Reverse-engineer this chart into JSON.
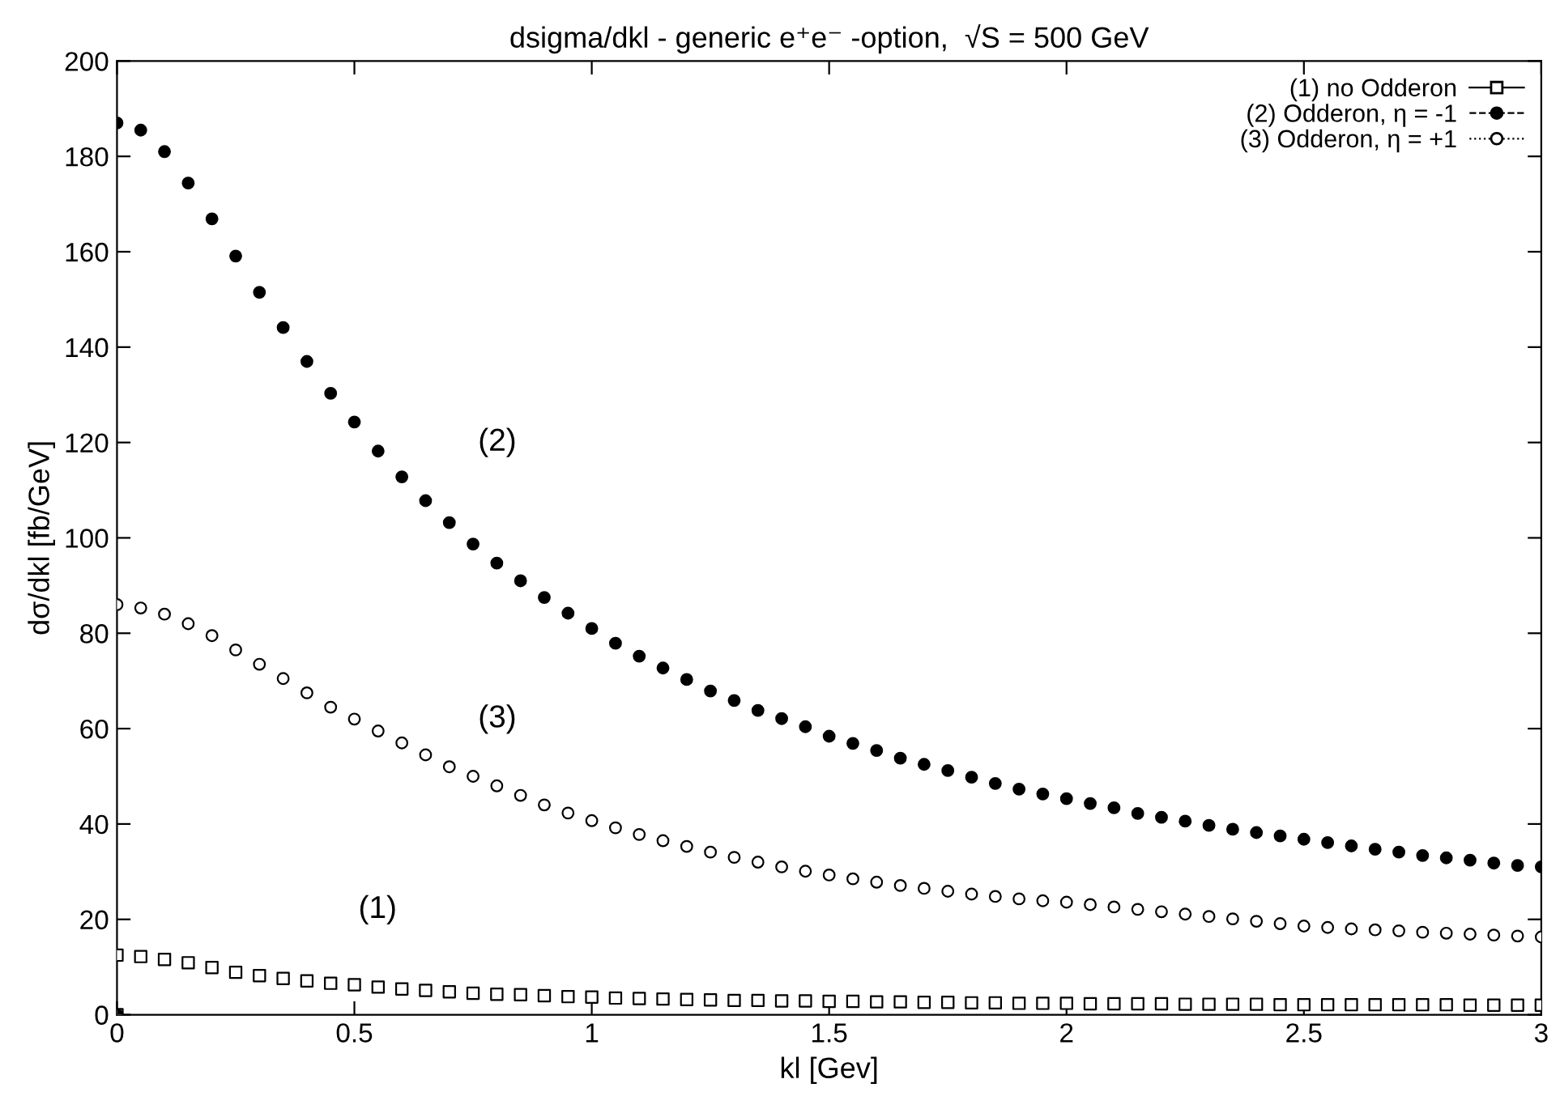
{
  "chart_data": {
    "type": "scatter",
    "title": "dsigma/dkl - generic e⁺e⁻ -option,  √S = 500 GeV",
    "xlabel": "kl [Gev]",
    "ylabel": "dσ/dkl [fb/GeV]",
    "x": [
      0,
      0.05,
      0.1,
      0.15,
      0.2,
      0.25,
      0.3,
      0.35,
      0.4,
      0.45,
      0.5,
      0.55,
      0.6,
      0.65,
      0.7,
      0.75,
      0.8,
      0.85,
      0.9,
      0.95,
      1,
      1.05,
      1.1,
      1.15,
      1.2,
      1.25,
      1.3,
      1.35,
      1.4,
      1.45,
      1.5,
      1.55,
      1.6,
      1.65,
      1.7,
      1.75,
      1.8,
      1.85,
      1.9,
      1.95,
      2,
      2.05,
      2.1,
      2.15,
      2.2,
      2.25,
      2.3,
      2.35,
      2.4,
      2.45,
      2.5,
      2.55,
      2.6,
      2.65,
      2.7,
      2.75,
      2.8,
      2.85,
      2.9,
      2.95,
      3
    ],
    "series": [
      {
        "name": "(1) no Odderon",
        "color": "#ffffff",
        "marker": "square",
        "line_style": "solid",
        "x": [
          0,
          0,
          0.05,
          0.1,
          0.15,
          0.2,
          0.25,
          0.3,
          0.35,
          0.4,
          0.45,
          0.5,
          0.55,
          0.6,
          0.65,
          0.7,
          0.75,
          0.8,
          0.85,
          0.9,
          0.95,
          1,
          1.05,
          1.1,
          1.15,
          1.2,
          1.25,
          1.3,
          1.35,
          1.4,
          1.45,
          1.5,
          1.55,
          1.6,
          1.65,
          1.7,
          1.75,
          1.8,
          1.85,
          1.9,
          1.95,
          2,
          2.05,
          2.1,
          2.15,
          2.2,
          2.25,
          2.3,
          2.35,
          2.4,
          2.45,
          2.5,
          2.55,
          2.6,
          2.65,
          2.7,
          2.75,
          2.8,
          2.85,
          2.9,
          2.95,
          3
        ],
        "values": [
          0,
          12.5,
          12.2,
          11.6,
          10.9,
          9.9,
          8.9,
          8.2,
          7.6,
          7.1,
          6.6,
          6.3,
          5.8,
          5.4,
          5.1,
          4.8,
          4.5,
          4.3,
          4.2,
          4.0,
          3.8,
          3.7,
          3.5,
          3.4,
          3.3,
          3.2,
          3.1,
          3.0,
          3.0,
          2.9,
          2.9,
          2.8,
          2.8,
          2.7,
          2.7,
          2.6,
          2.6,
          2.5,
          2.5,
          2.4,
          2.4,
          2.4,
          2.3,
          2.3,
          2.3,
          2.3,
          2.2,
          2.2,
          2.2,
          2.2,
          2.1,
          2.1,
          2.1,
          2.1,
          2.1,
          2.1,
          2.1,
          2.1,
          2.0,
          2.0,
          2.0,
          2.0
        ]
      },
      {
        "name": "(2) Odderon, η = -1",
        "color": "#000000",
        "marker": "circle",
        "line_style": "dashed",
        "x": [
          0,
          0,
          0.05,
          0.1,
          0.15,
          0.2,
          0.25,
          0.3,
          0.35,
          0.4,
          0.45,
          0.5,
          0.55,
          0.6,
          0.65,
          0.7,
          0.75,
          0.8,
          0.85,
          0.9,
          0.95,
          1,
          1.05,
          1.1,
          1.15,
          1.2,
          1.25,
          1.3,
          1.35,
          1.4,
          1.45,
          1.5,
          1.55,
          1.6,
          1.65,
          1.7,
          1.75,
          1.8,
          1.85,
          1.9,
          1.95,
          2,
          2.05,
          2.1,
          2.15,
          2.2,
          2.25,
          2.3,
          2.35,
          2.4,
          2.45,
          2.5,
          2.55,
          2.6,
          2.65,
          2.7,
          2.75,
          2.8,
          2.85,
          2.9,
          2.95,
          3
        ],
        "values": [
          0,
          187.0,
          185.5,
          181.0,
          174.4,
          166.9,
          159.1,
          151.5,
          144.1,
          137.0,
          130.3,
          124.3,
          118.2,
          112.8,
          107.8,
          103.2,
          98.7,
          94.7,
          91.0,
          87.5,
          84.2,
          81.0,
          77.9,
          75.2,
          72.7,
          70.3,
          67.9,
          65.9,
          63.8,
          62.1,
          60.4,
          58.4,
          56.9,
          55.4,
          53.8,
          52.5,
          51.2,
          49.8,
          48.5,
          47.3,
          46.3,
          45.3,
          44.3,
          43.4,
          42.2,
          41.4,
          40.6,
          39.7,
          38.9,
          38.2,
          37.5,
          36.8,
          36.1,
          35.4,
          34.7,
          34.1,
          33.4,
          32.9,
          32.4,
          31.8,
          31.3,
          31.0
        ]
      },
      {
        "name": "(3) Odderon, η = +1",
        "color": "#ffffff",
        "marker": "circle",
        "line_style": "dotted",
        "values": [
          86,
          85.3,
          84,
          82,
          79.5,
          76.5,
          73.5,
          70.5,
          67.5,
          64.5,
          62,
          59.5,
          57,
          54.5,
          52,
          50,
          48,
          46,
          44,
          42.3,
          40.7,
          39.2,
          37.8,
          36.5,
          35.3,
          34.1,
          33,
          32,
          31,
          30.1,
          29.3,
          28.5,
          27.8,
          27.1,
          26.5,
          25.9,
          25.3,
          24.8,
          24.3,
          23.9,
          23.6,
          23.1,
          22.6,
          22.1,
          21.6,
          21.1,
          20.6,
          20.1,
          19.6,
          19.1,
          18.6,
          18.3,
          18.0,
          17.8,
          17.6,
          17.3,
          17.1,
          16.9,
          16.7,
          16.5,
          16.3
        ]
      }
    ],
    "xlim": [
      0,
      3
    ],
    "ylim": [
      0,
      200
    ],
    "xticks": [
      0,
      0.5,
      1,
      1.5,
      2,
      2.5,
      3
    ],
    "yticks": [
      0,
      20,
      40,
      60,
      80,
      100,
      120,
      140,
      160,
      180,
      200
    ],
    "grid": false,
    "legend": "top right",
    "annotations": [
      "(1)",
      "(2)",
      "(3)"
    ]
  }
}
